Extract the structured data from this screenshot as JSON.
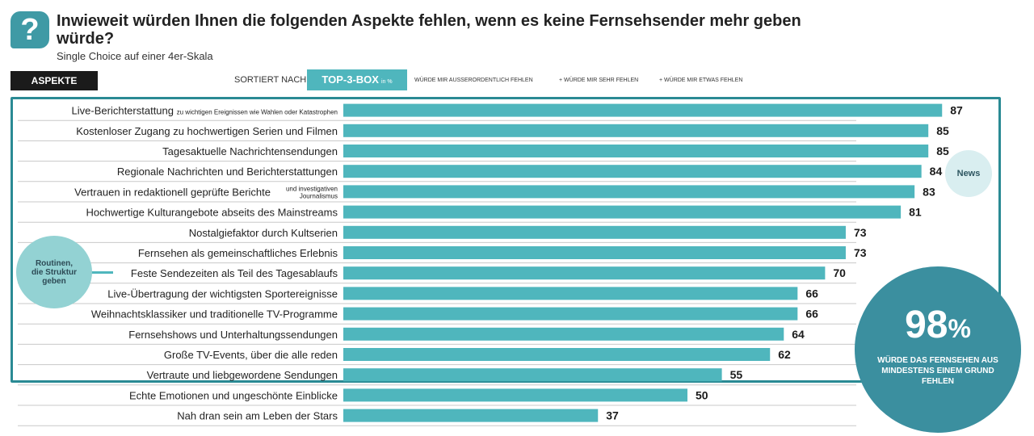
{
  "header": {
    "title": "Inwieweit würden Ihnen die folgenden Aspekte fehlen, wenn es keine Fernsehsender mehr geben würde?",
    "subtitle": "Single Choice auf einer 4er-Skala",
    "icon": "question-mark-icon"
  },
  "controls": {
    "aspekte_label": "ASPEKTE",
    "sortiert_label": "SORTIERT NACH",
    "top3_label": "TOP-3-BOX",
    "top3_unit": "in %",
    "legend": [
      "WÜRDE MIR AUSSERORDENTLICH FEHLEN",
      "+ WÜRDE MIR SEHR FEHLEN",
      "+ WÜRDE MIR ETWAS FEHLEN"
    ]
  },
  "callouts": {
    "news": "News",
    "routinen": "Routinen, die Struktur geben",
    "big_value": "98",
    "big_unit": "%",
    "big_text": "WÜRDE DAS FERNSEHEN AUS MINDESTENS EINEM GRUND FEHLEN"
  },
  "colors": {
    "bar": "#4fb6bd",
    "frame": "#2a8a94",
    "circle": "#3b8f9f",
    "header_dark": "#1b1b1b"
  },
  "chart_data": {
    "type": "bar",
    "orientation": "horizontal",
    "categories": [
      {
        "label": "Live-Berichterstattung",
        "sub": "zu wichtigen Ereignissen wie Wahlen oder Katastrophen"
      },
      {
        "label": "Kostenloser Zugang zu hochwertigen Serien und Filmen"
      },
      {
        "label": "Tagesaktuelle Nachrichtensendungen"
      },
      {
        "label": "Regionale Nachrichten und Berichterstattungen"
      },
      {
        "label": "Vertrauen in redaktionell geprüfte Berichte",
        "sub": "und investigativen Journalismus"
      },
      {
        "label": "Hochwertige Kulturangebote abseits des Mainstreams"
      },
      {
        "label": "Nostalgiefaktor durch Kultserien"
      },
      {
        "label": "Fernsehen als gemeinschaftliches Erlebnis"
      },
      {
        "label": "Feste Sendezeiten als Teil des Tagesablaufs"
      },
      {
        "label": "Live-Übertragung der wichtigsten Sportereignisse"
      },
      {
        "label": "Weihnachtsklassiker und traditionelle TV-Programme"
      },
      {
        "label": "Fernsehshows und Unterhaltungssendungen"
      },
      {
        "label": "Große TV-Events, über die alle reden"
      },
      {
        "label": "Vertraute und liebgewordene Sendungen"
      },
      {
        "label": "Echte Emotionen und ungeschönte Einblicke"
      },
      {
        "label": "Nah dran sein am Leben der Stars"
      }
    ],
    "values": [
      87,
      85,
      85,
      84,
      83,
      81,
      73,
      73,
      70,
      66,
      66,
      64,
      62,
      55,
      50,
      37
    ],
    "xlim": [
      0,
      100
    ],
    "grid": false
  }
}
